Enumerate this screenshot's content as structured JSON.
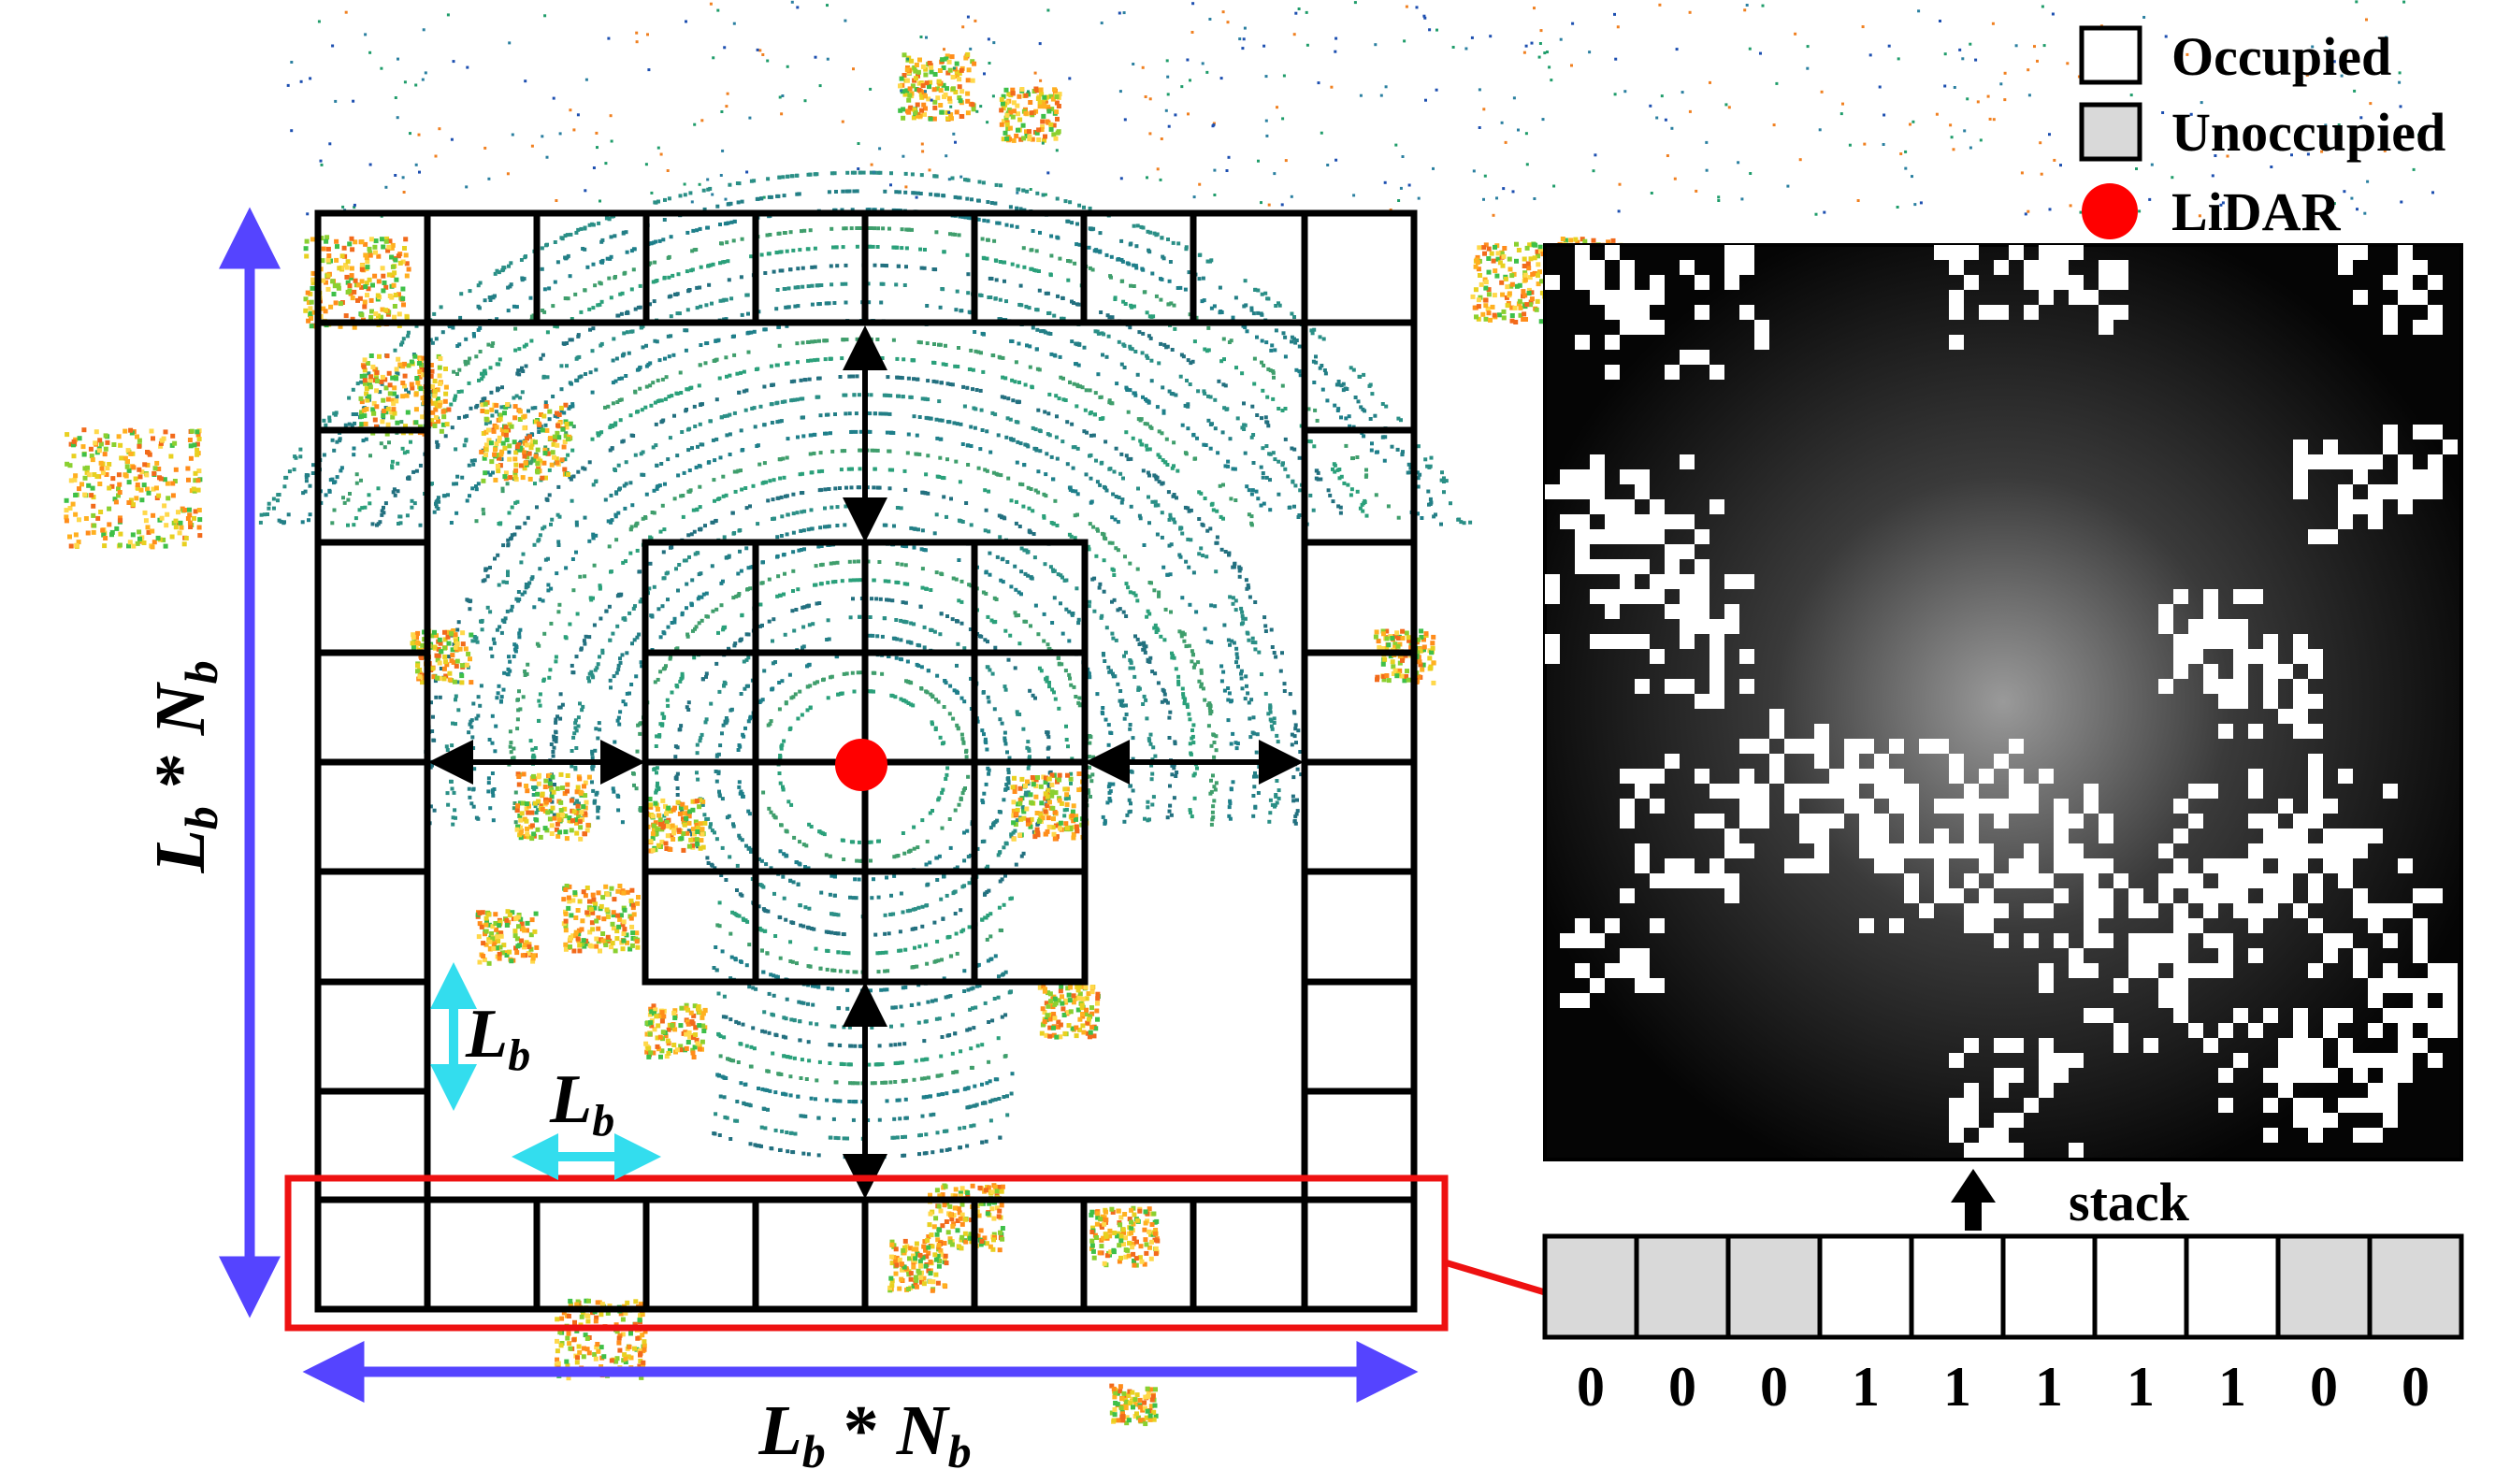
{
  "legend": {
    "occupied_label": "Occupied",
    "unoccupied_label": "Unoccupied",
    "lidar_label": "LiDAR",
    "occupied_color": "#ffffff",
    "unoccupied_color": "#d9d9d9",
    "lidar_color": "#ff0000"
  },
  "labels": {
    "vertical_extent": {
      "base": "L",
      "sub1": "b",
      "op": " * ",
      "base2": "N",
      "sub2": "b"
    },
    "horizontal_extent": {
      "base": "L",
      "sub1": "b",
      "op": " * ",
      "base2": "N",
      "sub2": "b"
    },
    "bin_size_vertical": {
      "base": "L",
      "sub": "b"
    },
    "bin_size_horizontal": {
      "base": "L",
      "sub": "b"
    },
    "stack": "stack"
  },
  "stack_bins": [
    "0",
    "0",
    "0",
    "1",
    "1",
    "1",
    "1",
    "1",
    "0",
    "0"
  ],
  "colors": {
    "extent_arrow": "#5544ff",
    "bin_arrow": "#33ddee",
    "highlight": "#ee1111",
    "lidar": "#ff0000"
  }
}
